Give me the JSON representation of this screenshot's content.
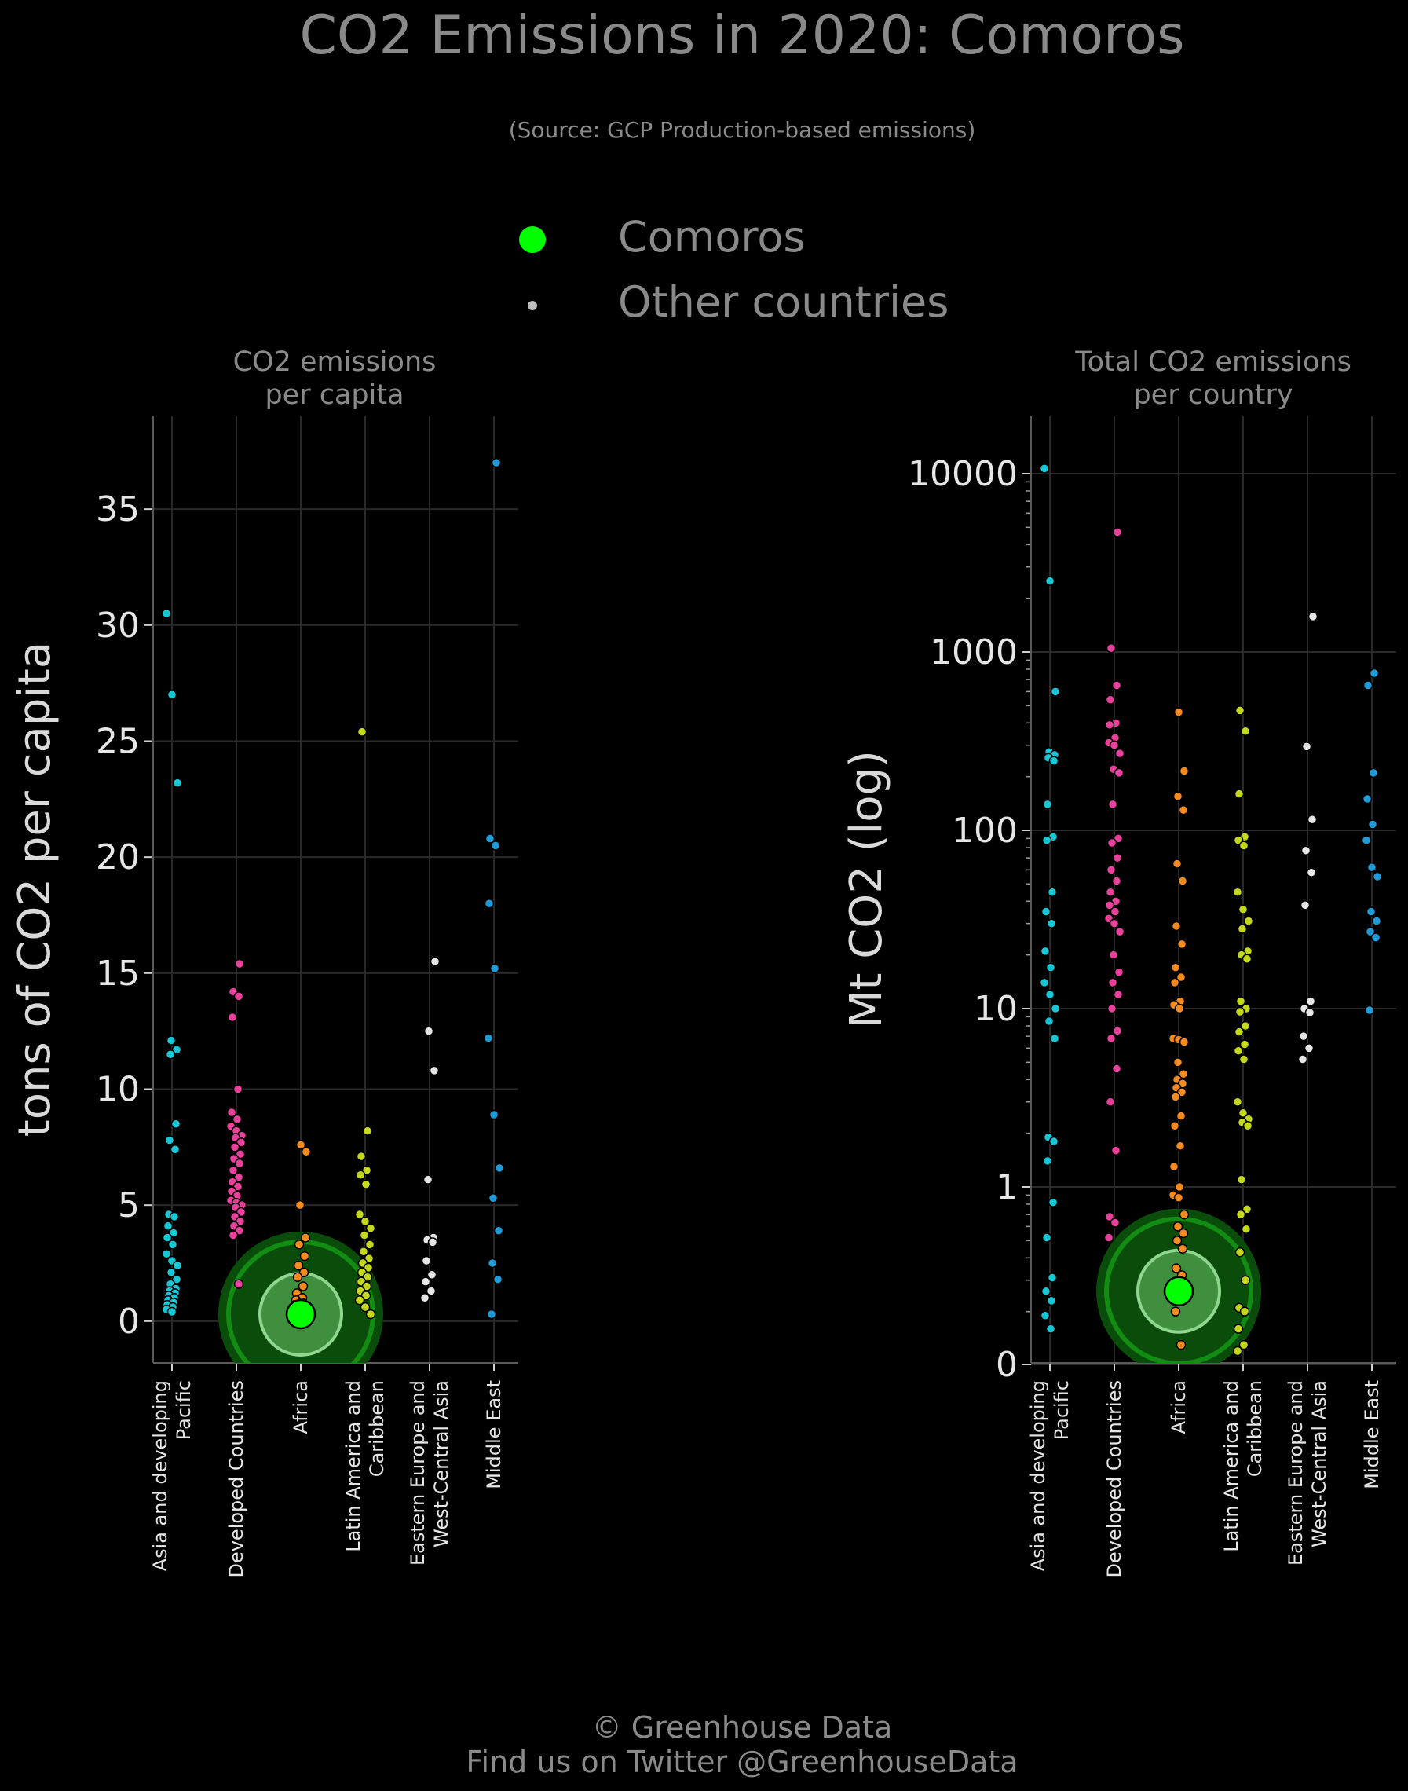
{
  "title": "CO2 Emissions in 2020: Comoros",
  "subtitle": "(Source: GCP Production-based emissions)",
  "legend": [
    {
      "label": "Comoros",
      "color": "#00ff00"
    },
    {
      "label": "Other countries",
      "color": "#bfbfbf"
    }
  ],
  "footer": {
    "line1": "© Greenhouse Data",
    "line2": "Find us on Twitter @GreenhouseData"
  },
  "region_colors": {
    "Asia and developing Pacific": "#17c7d6",
    "Developed Countries": "#e8409b",
    "Africa": "#f58a1f",
    "Latin America and Caribbean": "#c4d81c",
    "Eastern Europe and West-Central Asia": "#e6e6e6",
    "Middle East": "#1f9bd7"
  },
  "highlight_color": "#00ff00",
  "chart_data": [
    {
      "type": "scatter",
      "title": "CO2 emissions\nper capita",
      "ylabel": "tons of CO2 per capita",
      "ylim": [
        -1.8,
        39
      ],
      "yticks": [
        "0",
        "5",
        "10",
        "15",
        "20",
        "25",
        "30",
        "35"
      ],
      "categories": [
        "Asia and developing\nPacific",
        "Developed Countries",
        "Africa",
        "Latin America and\nCaribbean",
        "Eastern Europe and\nWest-Central Asia",
        "Middle East"
      ],
      "highlight": {
        "name": "Comoros",
        "category": 2,
        "value": 0.3
      },
      "series": [
        {
          "values": [
            30.5,
            27.0,
            23.2,
            12.1,
            11.7,
            11.5,
            8.5,
            7.8,
            7.4,
            4.6,
            4.5,
            4.1,
            3.8,
            3.6,
            3.3,
            2.9,
            2.6,
            2.4,
            2.1,
            1.8,
            1.6,
            1.4,
            1.3,
            1.2,
            1.1,
            1.0,
            0.9,
            0.8,
            0.7,
            0.6,
            0.5,
            0.4
          ]
        },
        {
          "values": [
            15.4,
            14.2,
            14.0,
            13.1,
            10.0,
            9.0,
            8.7,
            8.4,
            8.2,
            8.0,
            7.9,
            7.7,
            7.5,
            7.2,
            7.0,
            6.8,
            6.5,
            6.2,
            6.0,
            5.8,
            5.6,
            5.4,
            5.2,
            5.1,
            5.0,
            4.9,
            4.7,
            4.5,
            4.3,
            4.1,
            3.9,
            3.7,
            1.6
          ]
        },
        {
          "values": [
            7.6,
            7.3,
            5.0,
            3.6,
            3.3,
            2.8,
            2.4,
            2.1,
            1.9,
            1.5,
            1.2,
            1.0,
            0.9,
            0.8,
            0.7,
            0.6,
            0.5,
            0.4,
            0.35,
            0.3,
            0.25,
            0.2,
            0.15,
            0.12,
            0.1,
            0.08,
            0.06,
            0.05
          ]
        },
        {
          "values": [
            25.4,
            8.2,
            7.1,
            6.5,
            6.3,
            5.9,
            4.6,
            4.3,
            4.0,
            3.7,
            3.3,
            3.0,
            2.7,
            2.5,
            2.3,
            2.1,
            1.9,
            1.7,
            1.5,
            1.3,
            1.1,
            0.9,
            0.6,
            0.3
          ]
        },
        {
          "values": [
            15.5,
            12.5,
            10.8,
            6.1,
            3.6,
            3.5,
            3.4,
            2.6,
            2.0,
            1.7,
            1.3,
            1.0
          ]
        },
        {
          "values": [
            37.0,
            20.8,
            20.5,
            18.0,
            15.2,
            12.2,
            8.9,
            6.6,
            5.3,
            3.9,
            2.5,
            1.8,
            0.3
          ]
        }
      ]
    },
    {
      "type": "scatter",
      "title": "Total CO2 emissions\nper country",
      "ylabel": "Mt CO2 (log)",
      "yscale": "log",
      "yticks": [
        "0",
        "1",
        "10",
        "100",
        "1000",
        "10000"
      ],
      "categories": [
        "Asia and developing\nPacific",
        "Developed Countries",
        "Africa",
        "Latin America and\nCaribbean",
        "Eastern Europe and\nWest-Central Asia",
        "Middle East"
      ],
      "highlight": {
        "name": "Comoros",
        "category": 2,
        "value": 0.26
      },
      "series": [
        {
          "values": [
            10700,
            2500,
            600,
            275,
            265,
            255,
            245,
            140,
            92,
            88,
            45,
            35,
            30,
            21,
            17,
            14,
            12,
            10,
            8.5,
            6.8,
            1.9,
            1.8,
            1.4,
            0.82,
            0.52,
            0.31,
            0.26,
            0.23,
            0.19,
            0.16
          ]
        },
        {
          "values": [
            4700,
            1050,
            650,
            540,
            400,
            390,
            330,
            310,
            300,
            270,
            220,
            210,
            140,
            90,
            85,
            70,
            60,
            52,
            45,
            40,
            38,
            35,
            32,
            30,
            27,
            20,
            16,
            14,
            12,
            10,
            7.5,
            6.8,
            4.6,
            3.0,
            1.6,
            0.68,
            0.63,
            0.52
          ]
        },
        {
          "values": [
            460,
            215,
            155,
            130,
            65,
            52,
            29,
            23,
            17,
            15,
            14,
            11,
            10.5,
            10,
            6.8,
            6.7,
            6.5,
            5.0,
            4.3,
            4.0,
            3.8,
            3.6,
            3.4,
            3.2,
            2.5,
            2.2,
            1.7,
            1.3,
            1.0,
            0.9,
            0.87,
            0.7,
            0.6,
            0.55,
            0.5,
            0.45,
            0.35,
            0.32,
            0.2,
            0.13
          ]
        },
        {
          "values": [
            470,
            360,
            160,
            92,
            88,
            82,
            45,
            36,
            31,
            28,
            21,
            20,
            19,
            11,
            10,
            9.6,
            8.0,
            7.4,
            6.3,
            5.8,
            5.2,
            3.0,
            2.6,
            2.4,
            2.3,
            2.2,
            1.1,
            0.75,
            0.7,
            0.58,
            0.43,
            0.3,
            0.21,
            0.2,
            0.16,
            0.13,
            0.12
          ]
        },
        {
          "values": [
            1580,
            295,
            115,
            77,
            58,
            38,
            11,
            10,
            9.5,
            7.0,
            6.0,
            5.2
          ]
        },
        {
          "values": [
            760,
            650,
            210,
            150,
            108,
            88,
            62,
            55,
            35,
            31,
            27,
            25,
            9.8
          ]
        }
      ]
    }
  ]
}
